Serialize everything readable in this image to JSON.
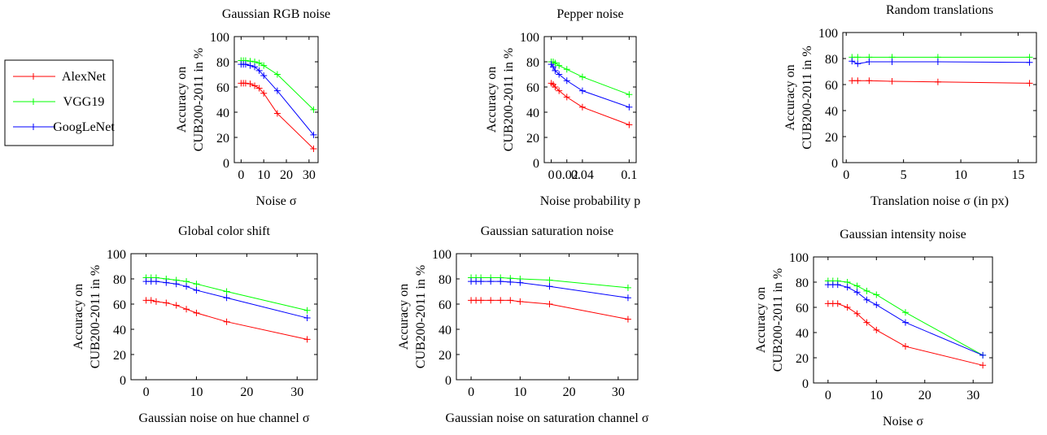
{
  "legend": {
    "items": [
      {
        "name": "AlexNet",
        "color": "#ff0000"
      },
      {
        "name": "VGG19",
        "color": "#00ff00"
      },
      {
        "name": "GoogLeNet",
        "color": "#0000ff"
      }
    ]
  },
  "chart_data": [
    {
      "type": "line",
      "title": "Gaussian RGB noise",
      "xlabel": "Noise σ",
      "ylabel": [
        "Accuracy on",
        "CUB200-2011 in %"
      ],
      "xlim": [
        -3,
        34
      ],
      "ylim": [
        0,
        100
      ],
      "xticks": [
        0,
        10,
        20,
        30
      ],
      "xtick_labels": [
        "0",
        "10",
        "20",
        "30"
      ],
      "yticks": [
        0,
        20,
        40,
        60,
        80,
        100
      ],
      "x": [
        0,
        1,
        2,
        4,
        6,
        8,
        10,
        16,
        32
      ],
      "series": [
        {
          "name": "AlexNet",
          "color": "#ff0000",
          "values": [
            63,
            63,
            63,
            62.5,
            61,
            59,
            55,
            39,
            11
          ]
        },
        {
          "name": "VGG19",
          "color": "#00ff00",
          "values": [
            81,
            81,
            81,
            80.5,
            80,
            79,
            77,
            70,
            42
          ]
        },
        {
          "name": "GoogLeNet",
          "color": "#0000ff",
          "values": [
            78,
            78,
            78,
            77,
            76,
            73,
            69,
            57,
            22
          ]
        }
      ]
    },
    {
      "type": "line",
      "title": "Pepper noise",
      "xlabel": "Noise probability p",
      "ylabel": [
        "Accuracy on",
        "CUB200-2011 in %"
      ],
      "xlim": [
        -0.009,
        0.109
      ],
      "ylim": [
        0,
        100
      ],
      "xticks": [
        0,
        0.02,
        0.04,
        0.1
      ],
      "xtick_labels": [
        "0",
        "0.02",
        "0.04",
        "0.1"
      ],
      "yticks": [
        0,
        20,
        40,
        60,
        80,
        100
      ],
      "x": [
        0,
        0.0025,
        0.005,
        0.01,
        0.02,
        0.04,
        0.1
      ],
      "series": [
        {
          "name": "AlexNet",
          "color": "#ff0000",
          "values": [
            63,
            62,
            60,
            57,
            52,
            44,
            30
          ]
        },
        {
          "name": "VGG19",
          "color": "#00ff00",
          "values": [
            80,
            80,
            79,
            77,
            74,
            68,
            54
          ]
        },
        {
          "name": "GoogLeNet",
          "color": "#0000ff",
          "values": [
            78,
            76,
            73,
            70,
            65,
            57,
            44
          ]
        }
      ]
    },
    {
      "type": "line",
      "title": "Random translations",
      "xlabel": "Translation noise σ (in px)",
      "ylabel": [
        "Accuracy on",
        "CUB200-2011 in %"
      ],
      "xlim": [
        -0.3,
        16.6
      ],
      "ylim": [
        0,
        100
      ],
      "xticks": [
        0,
        5,
        10,
        15
      ],
      "xtick_labels": [
        "0",
        "5",
        "10",
        "15"
      ],
      "yticks": [
        0,
        20,
        40,
        60,
        80,
        100
      ],
      "x": [
        0.5,
        1,
        2,
        4,
        8,
        16
      ],
      "series": [
        {
          "name": "AlexNet",
          "color": "#ff0000",
          "values": [
            63,
            63,
            63,
            62.5,
            62,
            61
          ]
        },
        {
          "name": "VGG19",
          "color": "#00ff00",
          "values": [
            81,
            81,
            81,
            81,
            81,
            81
          ]
        },
        {
          "name": "GoogLeNet",
          "color": "#0000ff",
          "values": [
            78,
            76,
            77.5,
            77.5,
            77.5,
            77
          ]
        }
      ]
    },
    {
      "type": "line",
      "title": "Global color shift",
      "xlabel": "Gaussian noise on hue channel σ",
      "ylabel": [
        "Accuracy on",
        "CUB200-2011 in %"
      ],
      "xlim": [
        -3,
        34
      ],
      "ylim": [
        0,
        100
      ],
      "xticks": [
        0,
        10,
        20,
        30
      ],
      "xtick_labels": [
        "0",
        "10",
        "20",
        "30"
      ],
      "yticks": [
        0,
        20,
        40,
        60,
        80,
        100
      ],
      "x": [
        0,
        1,
        2,
        4,
        6,
        8,
        10,
        16,
        32
      ],
      "series": [
        {
          "name": "AlexNet",
          "color": "#ff0000",
          "values": [
            63,
            63,
            62,
            61,
            59,
            56,
            53,
            46,
            32
          ]
        },
        {
          "name": "VGG19",
          "color": "#00ff00",
          "values": [
            81,
            81,
            81,
            80,
            79,
            78,
            76,
            70,
            55
          ]
        },
        {
          "name": "GoogLeNet",
          "color": "#0000ff",
          "values": [
            78,
            78,
            78,
            77,
            76,
            74,
            71,
            65,
            49
          ]
        }
      ]
    },
    {
      "type": "line",
      "title": "Gaussian saturation noise",
      "xlabel": "Gaussian noise on saturation channel σ",
      "ylabel": [
        "Accuracy on",
        "CUB200-2011 in %"
      ],
      "xlim": [
        -3,
        34
      ],
      "ylim": [
        0,
        100
      ],
      "xticks": [
        0,
        10,
        20,
        30
      ],
      "xtick_labels": [
        "0",
        "10",
        "20",
        "30"
      ],
      "yticks": [
        0,
        20,
        40,
        60,
        80,
        100
      ],
      "x": [
        0,
        1,
        2,
        4,
        6,
        8,
        10,
        16,
        32
      ],
      "series": [
        {
          "name": "AlexNet",
          "color": "#ff0000",
          "values": [
            63,
            63,
            63,
            63,
            63,
            63,
            62,
            60,
            48
          ]
        },
        {
          "name": "VGG19",
          "color": "#00ff00",
          "values": [
            81,
            81,
            81,
            81,
            81,
            80.5,
            80,
            79,
            73
          ]
        },
        {
          "name": "GoogLeNet",
          "color": "#0000ff",
          "values": [
            78,
            78,
            78,
            78,
            78,
            77.5,
            77,
            74,
            65
          ]
        }
      ]
    },
    {
      "type": "line",
      "title": "Gaussian intensity noise",
      "xlabel": "Noise σ",
      "ylabel": [
        "Accuracy on",
        "CUB200-2011 in %"
      ],
      "xlim": [
        -3,
        34
      ],
      "ylim": [
        0,
        100
      ],
      "xticks": [
        0,
        10,
        20,
        30
      ],
      "xtick_labels": [
        "0",
        "10",
        "20",
        "30"
      ],
      "yticks": [
        0,
        20,
        40,
        60,
        80,
        100
      ],
      "x": [
        0,
        1,
        2,
        4,
        6,
        8,
        10,
        16,
        32
      ],
      "series": [
        {
          "name": "AlexNet",
          "color": "#ff0000",
          "values": [
            63,
            63,
            63,
            60,
            55,
            48,
            42,
            29,
            14
          ]
        },
        {
          "name": "VGG19",
          "color": "#00ff00",
          "values": [
            81,
            81,
            81,
            80,
            77,
            73,
            70,
            56,
            22
          ]
        },
        {
          "name": "GoogLeNet",
          "color": "#0000ff",
          "values": [
            78,
            78,
            78,
            76,
            72,
            66,
            62,
            48,
            22
          ]
        }
      ]
    }
  ]
}
